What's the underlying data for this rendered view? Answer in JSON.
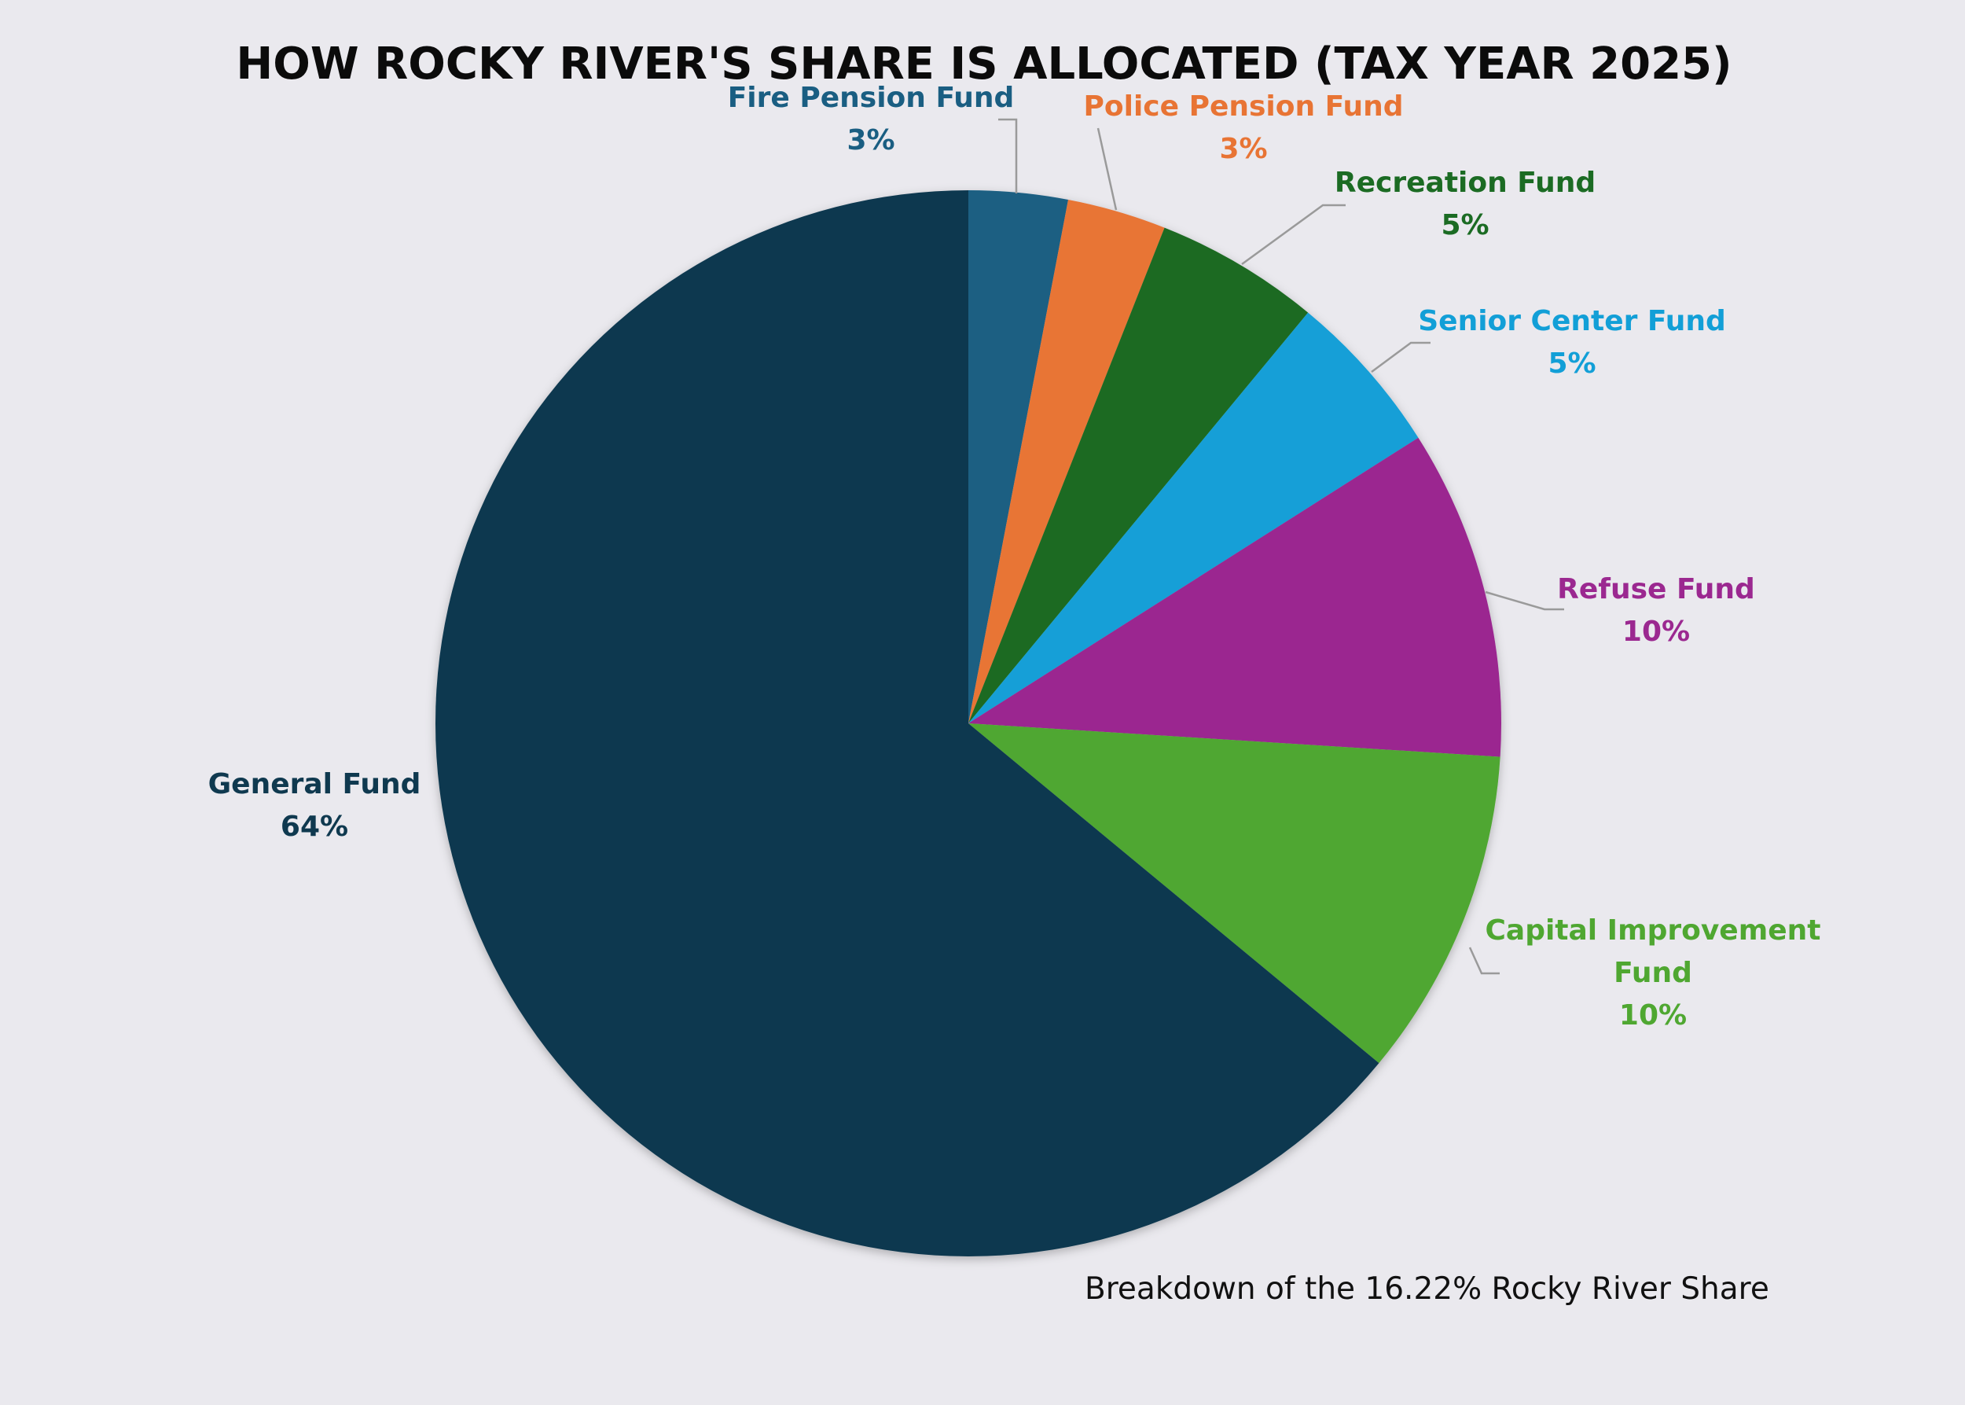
{
  "chart_data": {
    "type": "pie",
    "title": "HOW ROCKY RIVER'S SHARE IS ALLOCATED (TAX YEAR 2025)",
    "annotation": "Breakdown of the 16.22% Rocky River Share",
    "slices": [
      {
        "label": "Fire Pension Fund",
        "value": 3,
        "value_label": "3%",
        "color": "#1a5e82"
      },
      {
        "label": "Police Pension Fund",
        "value": 3,
        "value_label": "3%",
        "color": "#e87434"
      },
      {
        "label": "Recreation Fund",
        "value": 5,
        "value_label": "5%",
        "color": "#1b6b23"
      },
      {
        "label": "Senior Center Fund",
        "value": 5,
        "value_label": "5%",
        "color": "#129fd7"
      },
      {
        "label": "Refuse Fund",
        "value": 10,
        "value_label": "10%",
        "color": "#9b2890"
      },
      {
        "label": "Capital Improvement Fund",
        "value": 10,
        "value_label": "10%",
        "color": "#4fa731"
      },
      {
        "label": "General Fund",
        "value": 64,
        "value_label": "64%",
        "color": "#0f394f"
      }
    ]
  }
}
